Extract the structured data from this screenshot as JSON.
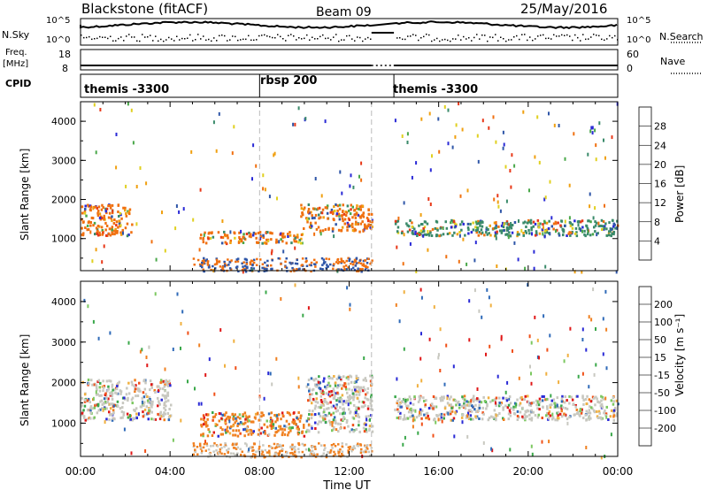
{
  "header": {
    "title": "Blackstone (fitACF)",
    "beam": "Beam 09",
    "date": "25/May/2016"
  },
  "left_labels": {
    "nsky": "N.Sky",
    "freq": "Freq.",
    "mhz": "[MHz]",
    "cpid": "CPID"
  },
  "right_labels": {
    "nsearch": "N.Search",
    "nave": "Nave"
  },
  "ticks": {
    "nsky_top": "10^5",
    "nsky_bottom": "10^0",
    "freq_top": "18",
    "freq_bottom": "8",
    "nave_top": "60",
    "nave_bottom": "0"
  },
  "cpid_segments": [
    "themis -3300",
    "rbsp 200",
    "themis -3300"
  ],
  "chart_data": [
    {
      "type": "heatmap",
      "panel": "power",
      "ylabel": "Slant Range [km]",
      "yticks": [
        "1000",
        "2000",
        "3000",
        "4000"
      ],
      "ylim": [
        180,
        4500
      ],
      "colorbar_label": "Power [dB]",
      "colorbar_ticks": [
        "4",
        "8",
        "12",
        "16",
        "20",
        "24",
        "28"
      ],
      "colors": [
        "#2a2ad6",
        "#2f56a8",
        "#3a8a6a",
        "#4aa84a",
        "#e0d020",
        "#f0a010",
        "#f07010",
        "#e83818"
      ],
      "scatter_color_weights": [
        "#2f56a8",
        "#3a8a6a",
        "#4aa84a",
        "#2a2ad6"
      ],
      "features": [
        {
          "hours": [
            0.0,
            2.3
          ],
          "range_km": [
            1100,
            1900
          ],
          "description_color": "#f07010"
        },
        {
          "hours": [
            5.3,
            10.0
          ],
          "range_km": [
            900,
            1200
          ],
          "description_color": "#f07010"
        },
        {
          "hours": [
            9.8,
            13.0
          ],
          "range_km": [
            1200,
            1900
          ],
          "description_color": "#f07010"
        },
        {
          "hours": [
            14.0,
            24.0
          ],
          "range_km": [
            1100,
            1500
          ],
          "description_color": "#3a8a6a"
        }
      ]
    },
    {
      "type": "heatmap",
      "panel": "velocity",
      "ylabel": "Slant Range [km]",
      "yticks": [
        "1000",
        "2000",
        "3000",
        "4000"
      ],
      "ylim": [
        180,
        4500
      ],
      "colorbar_label": "Velocity [m s⁻¹]",
      "colorbar_ticks": [
        "-200",
        "-100",
        "-50",
        "-15",
        "15",
        "50",
        "100",
        "200"
      ],
      "colors": [
        "#e01818",
        "#f05018",
        "#f08020",
        "#f0b040",
        "#c8c8c0",
        "#7cc860",
        "#3aa84a",
        "#2f6ab8",
        "#2a2ad6"
      ],
      "features": [
        {
          "hours": [
            0.0,
            4.0
          ],
          "range_km": [
            1100,
            2100
          ],
          "description_color": "#c8c8c0"
        },
        {
          "hours": [
            5.3,
            10.0
          ],
          "range_km": [
            700,
            1300
          ],
          "description_color": "#f08020"
        },
        {
          "hours": [
            10.0,
            13.0
          ],
          "range_km": [
            800,
            2200
          ],
          "description_color": "#c8c8c0"
        },
        {
          "hours": [
            14.0,
            24.0
          ],
          "range_km": [
            1100,
            1700
          ],
          "description_color": "#c8c8c0"
        }
      ]
    }
  ],
  "xaxis": {
    "xlabel": "Time UT",
    "xticks": [
      "00:00",
      "04:00",
      "08:00",
      "12:00",
      "16:00",
      "20:00",
      "00:00"
    ],
    "xlim_hours": [
      0,
      24
    ],
    "data_gap_hours": [
      13.0,
      14.0
    ],
    "dashed_lines_hours": [
      8.0,
      13.0
    ]
  }
}
